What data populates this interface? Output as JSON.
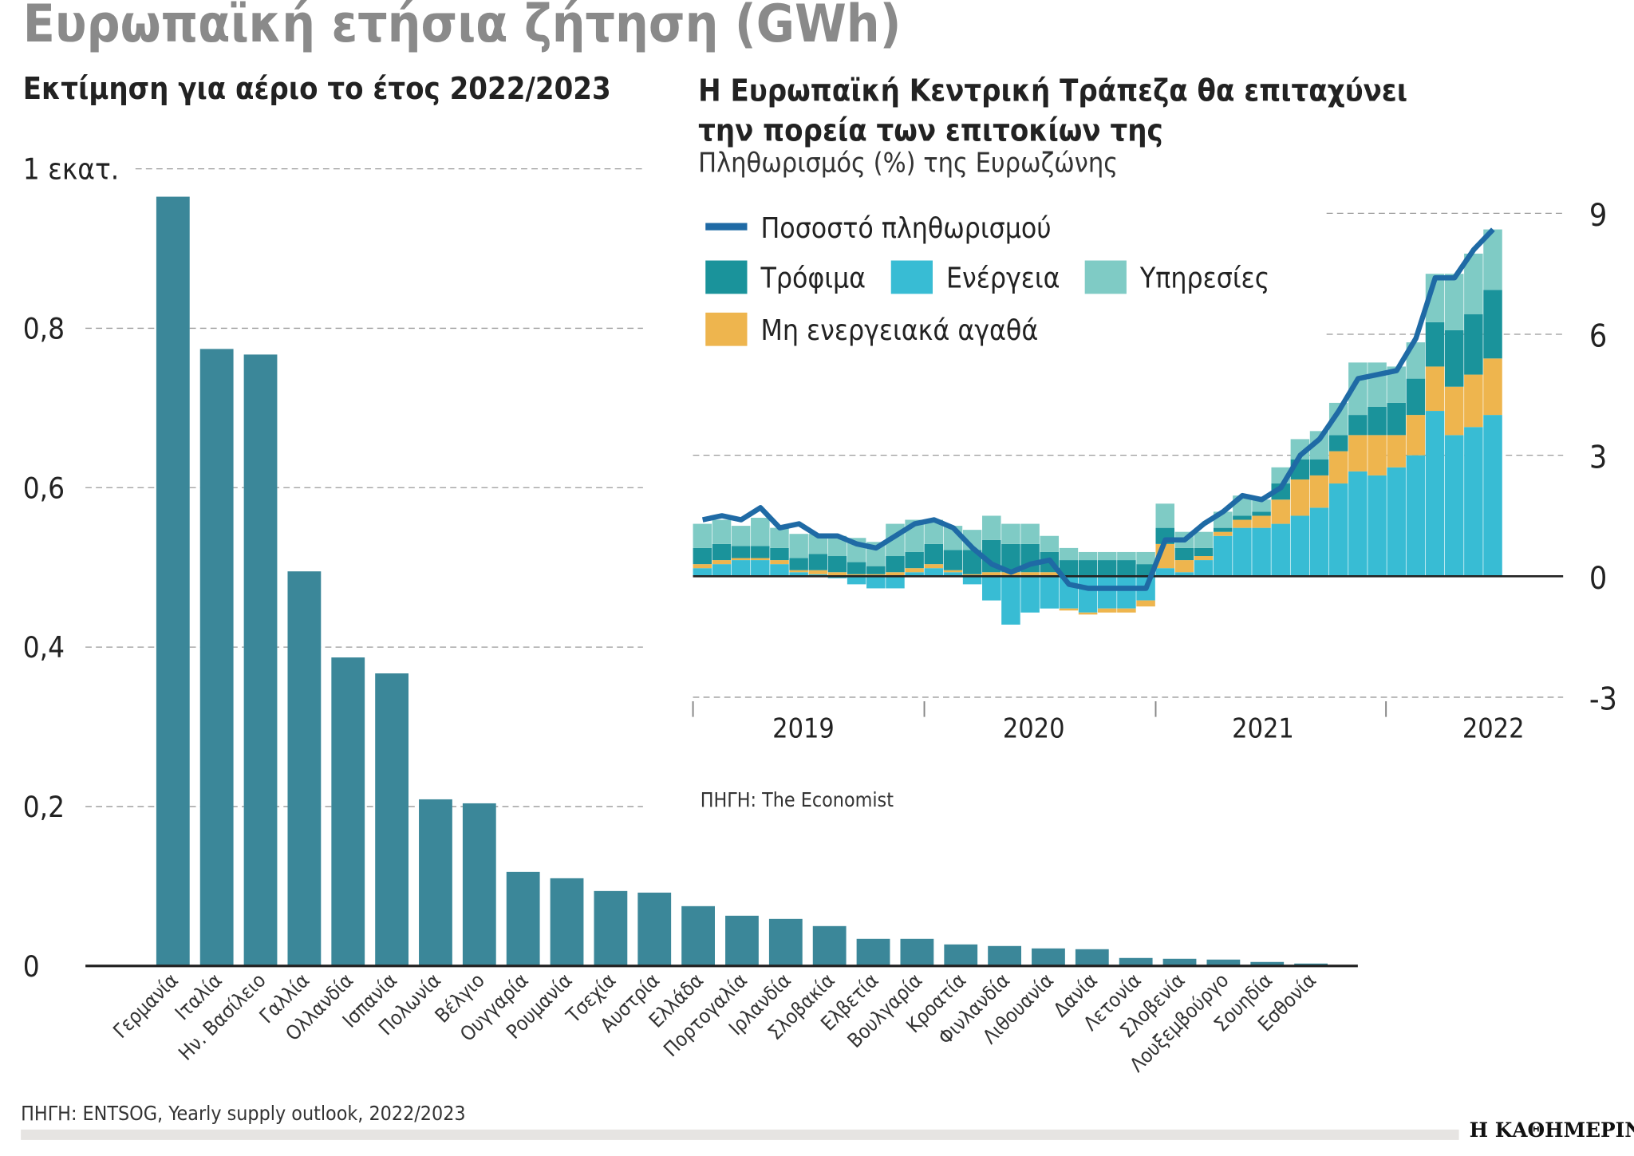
{
  "title": "Ευρωπαϊκή ετήσια ζήτηση (GWh)",
  "chart_data": [
    {
      "type": "bar",
      "title": "Εκτίμηση για αέριο το έτος 2022/2023",
      "categories": [
        "Γερμανία",
        "Ιταλία",
        "Ην. Βασίλειο",
        "Γαλλία",
        "Ολλανδία",
        "Ισπανία",
        "Πολωνία",
        "Βέλγιο",
        "Ουγγαρία",
        "Ρουμανία",
        "Τσεχία",
        "Αυστρία",
        "Ελλάδα",
        "Πορτογαλία",
        "Ιρλανδία",
        "Σλοβακία",
        "Ελβετία",
        "Βουλγαρία",
        "Κροατία",
        "Φινλανδία",
        "Λιθουανία",
        "Δανία",
        "Λετονία",
        "Σλοβενία",
        "Λουξεμβούργο",
        "Σουηδία",
        "Εσθονία"
      ],
      "values": [
        0.965,
        0.774,
        0.767,
        0.495,
        0.387,
        0.367,
        0.209,
        0.204,
        0.118,
        0.11,
        0.094,
        0.092,
        0.075,
        0.063,
        0.059,
        0.05,
        0.034,
        0.034,
        0.027,
        0.025,
        0.022,
        0.021,
        0.01,
        0.009,
        0.008,
        0.005,
        0.003
      ],
      "ylim": [
        0,
        1
      ],
      "yticks": [
        0,
        0.2,
        0.4,
        0.6,
        0.8,
        1
      ],
      "ytick_labels": [
        "0",
        "0,2",
        "0,4",
        "0,6",
        "0,8",
        "1 εκατ."
      ],
      "grid": true,
      "color": "#3b8799",
      "source": "ΠΗΓΗ: ENTSOG, Yearly supply outlook, 2022/2023"
    },
    {
      "type": "bar",
      "stacked": true,
      "title": "Η Ευρωπαϊκή Κεντρική Τράπεζα θα επιταχύνει την πορεία των επιτοκίων της",
      "subtitle": "Πληθωρισμός (%) της Ευρωζώνης",
      "x_tick_labels": [
        "2019",
        "2020",
        "2021",
        "2022"
      ],
      "ylim": [
        -3,
        9
      ],
      "yticks": [
        -3,
        0,
        3,
        6,
        9
      ],
      "ytick_labels": [
        "-3",
        "0",
        "3",
        "6",
        "9"
      ],
      "y_axis_side": "right",
      "legend_placement": "top-left",
      "series": [
        {
          "name": "Ενέργεια",
          "color": "#38bcd4",
          "values": [
            0.2,
            0.3,
            0.4,
            0.4,
            0.3,
            0.1,
            0.05,
            -0.05,
            -0.2,
            -0.3,
            -0.3,
            0.1,
            0.2,
            0.1,
            -0.2,
            -0.6,
            -1.2,
            -0.9,
            -0.8,
            -0.8,
            -0.9,
            -0.8,
            -0.8,
            -0.6,
            0.2,
            0.1,
            0.4,
            1.0,
            1.2,
            1.2,
            1.3,
            1.5,
            1.7,
            2.3,
            2.6,
            2.5,
            2.7,
            3.0,
            4.1,
            3.5,
            3.7,
            4.0
          ]
        },
        {
          "name": "Μη ενεργειακά αγαθά",
          "color": "#eeb54e",
          "values": [
            0.1,
            0.1,
            0.05,
            0.05,
            0.1,
            0.05,
            0.1,
            0.1,
            0.05,
            0.05,
            0.1,
            0.1,
            0.1,
            0.05,
            0.05,
            0.1,
            0.1,
            0.1,
            0.1,
            -0.05,
            -0.05,
            -0.1,
            -0.1,
            -0.15,
            0.6,
            0.3,
            0.1,
            0.1,
            0.2,
            0.3,
            0.6,
            0.9,
            0.8,
            0.8,
            0.9,
            1.0,
            0.8,
            1.0,
            1.1,
            1.2,
            1.3,
            1.4
          ]
        },
        {
          "name": "Τρόφιμα",
          "color": "#1a939b",
          "values": [
            0.4,
            0.4,
            0.3,
            0.3,
            0.3,
            0.3,
            0.4,
            0.4,
            0.3,
            0.2,
            0.4,
            0.4,
            0.5,
            0.5,
            0.6,
            0.8,
            0.7,
            0.7,
            0.5,
            0.4,
            0.4,
            0.4,
            0.4,
            0.3,
            0.4,
            0.3,
            0.2,
            0.1,
            0.1,
            0.1,
            0.4,
            0.5,
            0.4,
            0.4,
            0.5,
            0.7,
            0.8,
            0.9,
            1.1,
            1.4,
            1.5,
            1.7
          ]
        },
        {
          "name": "Υπηρεσίες",
          "color": "#7fcbc5",
          "values": [
            0.6,
            0.6,
            0.5,
            0.7,
            0.5,
            0.6,
            0.5,
            0.5,
            0.6,
            0.6,
            0.8,
            0.8,
            0.6,
            0.6,
            0.5,
            0.6,
            0.5,
            0.5,
            0.4,
            0.3,
            0.2,
            0.2,
            0.2,
            0.3,
            0.6,
            0.4,
            0.4,
            0.4,
            0.5,
            0.3,
            0.4,
            0.5,
            0.7,
            0.8,
            1.3,
            1.1,
            0.9,
            0.9,
            1.2,
            1.4,
            1.5,
            1.5
          ]
        }
      ],
      "line": {
        "name": "Ποσοστό πληθωρισμού",
        "color": "#1f6aa5",
        "values": [
          1.4,
          1.5,
          1.4,
          1.7,
          1.2,
          1.3,
          1.0,
          1.0,
          0.8,
          0.7,
          1.0,
          1.3,
          1.4,
          1.2,
          0.7,
          0.3,
          0.1,
          0.3,
          0.4,
          -0.2,
          -0.3,
          -0.3,
          -0.3,
          -0.3,
          0.9,
          0.9,
          1.3,
          1.6,
          2.0,
          1.9,
          2.2,
          3.0,
          3.4,
          4.1,
          4.9,
          5.0,
          5.1,
          5.9,
          7.4,
          7.4,
          8.1,
          8.6
        ]
      },
      "source": "ΠΗΓΗ: The Economist"
    }
  ],
  "logo": "Η ΚΑΘΗΜΕΡΙΝΗ"
}
